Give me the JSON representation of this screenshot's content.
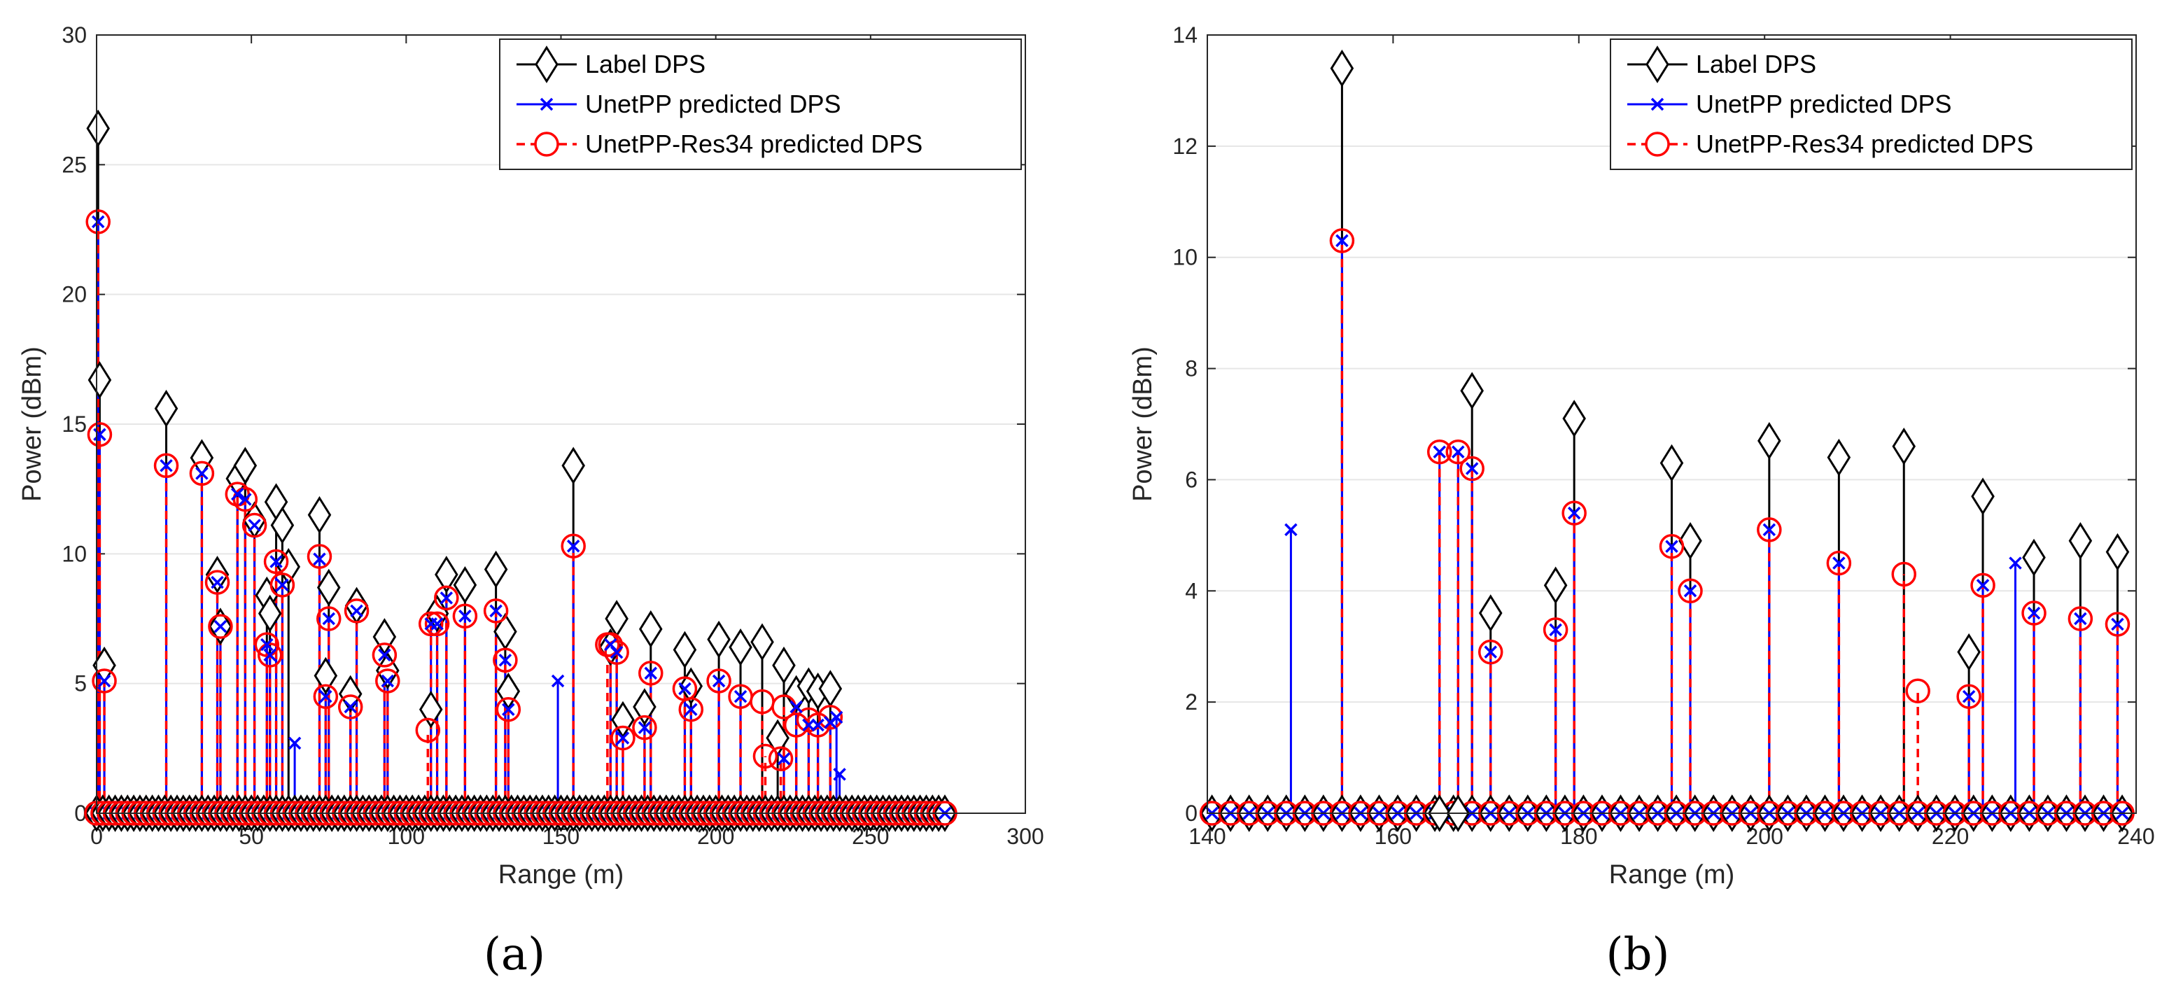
{
  "legend": {
    "label": "Label DPS",
    "unetpp": "UnetPP predicted DPS",
    "res34": "UnetPP-Res34 predicted DPS"
  },
  "colors": {
    "label": "#000000",
    "unetpp": "#0000ff",
    "res34": "#ff0000",
    "grid": "#e6e6e6",
    "axis": "#262626"
  },
  "chart_data": [
    {
      "type": "stem",
      "panel": "(a)",
      "xlabel": "Range (m)",
      "ylabel": "Power (dBm)",
      "xlim": [
        0,
        300
      ],
      "ylim": [
        0,
        30
      ],
      "xticks": [
        0,
        50,
        100,
        150,
        200,
        250,
        300
      ],
      "yticks": [
        0,
        5,
        10,
        15,
        20,
        25,
        30
      ],
      "grid": "horizontal",
      "legend_position": "top-right",
      "zero_range": [
        0,
        275
      ],
      "zero_step": 2,
      "series": [
        {
          "name": "Label DPS",
          "x": [
            0.5,
            1,
            2.5,
            22.5,
            34,
            39,
            40,
            45.5,
            48,
            51,
            55,
            56,
            58,
            60,
            62,
            72,
            74,
            75,
            82,
            84,
            93,
            94,
            108,
            110,
            113,
            119,
            129,
            132,
            133,
            154,
            166,
            168,
            170,
            177,
            179,
            190,
            192,
            201,
            208,
            215,
            220,
            222,
            226,
            230,
            233,
            237
          ],
          "y": [
            26.4,
            16.7,
            5.7,
            15.6,
            13.7,
            9.2,
            7.2,
            12.9,
            13.4,
            11.3,
            8.4,
            7.7,
            12.0,
            11.1,
            9.5,
            11.5,
            5.3,
            8.7,
            4.6,
            8.0,
            6.8,
            5.5,
            4.0,
            7.7,
            9.2,
            8.8,
            9.4,
            7.0,
            4.7,
            13.4,
            6.4,
            7.5,
            3.6,
            4.1,
            7.1,
            6.3,
            4.9,
            6.7,
            6.4,
            6.6,
            2.9,
            5.7,
            4.6,
            4.9,
            4.7,
            4.8
          ]
        },
        {
          "name": "UnetPP predicted DPS",
          "x": [
            0.5,
            1,
            2.5,
            22.5,
            34,
            39,
            40,
            45.5,
            48,
            51,
            55,
            56,
            58,
            60,
            64,
            72,
            74,
            75,
            82,
            84,
            93,
            94,
            108,
            110,
            113,
            119,
            129,
            132,
            133,
            149,
            154,
            166,
            168,
            170,
            177,
            179,
            190,
            192,
            201,
            208,
            222,
            226,
            230,
            233,
            237,
            239,
            240
          ],
          "y": [
            22.8,
            14.6,
            5.1,
            13.4,
            13.1,
            8.9,
            7.2,
            12.3,
            12.1,
            11.1,
            6.5,
            6.1,
            9.7,
            8.8,
            2.7,
            9.8,
            4.5,
            7.5,
            4.1,
            7.8,
            6.1,
            5.1,
            7.3,
            7.3,
            8.3,
            7.6,
            7.8,
            5.9,
            4.0,
            5.1,
            10.3,
            6.5,
            6.2,
            2.9,
            3.3,
            5.4,
            4.8,
            4.0,
            5.1,
            4.5,
            2.1,
            4.1,
            3.4,
            3.4,
            3.5,
            3.7,
            1.5
          ]
        },
        {
          "name": "UnetPP-Res34 predicted DPS",
          "x": [
            0.5,
            1,
            2.5,
            22.5,
            34,
            39,
            40,
            45.5,
            48,
            51,
            55,
            56,
            58,
            60,
            72,
            74,
            75,
            82,
            84,
            93,
            94,
            107,
            108,
            110,
            113,
            119,
            129,
            132,
            133,
            154,
            165,
            166,
            168,
            170,
            177,
            179,
            190,
            192,
            201,
            208,
            215,
            216,
            221,
            222,
            226,
            230,
            233,
            237
          ],
          "y": [
            22.8,
            14.6,
            5.1,
            13.4,
            13.1,
            8.9,
            7.2,
            12.3,
            12.1,
            11.1,
            6.5,
            6.1,
            9.7,
            8.8,
            9.9,
            4.5,
            7.5,
            4.1,
            7.8,
            6.1,
            5.1,
            3.2,
            7.3,
            7.3,
            8.3,
            7.6,
            7.8,
            5.9,
            4.0,
            10.3,
            6.5,
            6.5,
            6.2,
            2.9,
            3.3,
            5.4,
            4.8,
            4.0,
            5.1,
            4.5,
            4.3,
            2.2,
            2.1,
            4.1,
            3.4,
            3.6,
            3.4,
            3.7
          ]
        }
      ]
    },
    {
      "type": "stem",
      "panel": "(b)",
      "xlabel": "Range (m)",
      "ylabel": "Power (dBm)",
      "xlim": [
        140,
        240
      ],
      "ylim": [
        0,
        14
      ],
      "xticks": [
        140,
        160,
        180,
        200,
        220,
        240
      ],
      "yticks": [
        0,
        2,
        4,
        6,
        8,
        10,
        12,
        14
      ],
      "grid": "horizontal",
      "legend_position": "top-right",
      "zero_range": [
        140.5,
        239.5
      ],
      "zero_step": 2,
      "series": [
        {
          "name": "Label DPS",
          "x": [
            154.5,
            165,
            167,
            168.5,
            170.5,
            177.5,
            179.5,
            190,
            192,
            200.5,
            208,
            215,
            222,
            223.5,
            229,
            234,
            238
          ],
          "y": [
            13.4,
            0,
            0,
            7.6,
            3.6,
            4.1,
            7.1,
            6.3,
            4.9,
            6.7,
            6.4,
            6.6,
            2.9,
            5.7,
            4.6,
            4.9,
            4.7
          ]
        },
        {
          "name": "UnetPP predicted DPS",
          "x": [
            149,
            154.5,
            165,
            167,
            168.5,
            170.5,
            177.5,
            179.5,
            190,
            192,
            200.5,
            208,
            222,
            223.5,
            227,
            229,
            234,
            238
          ],
          "y": [
            5.1,
            10.3,
            6.5,
            6.5,
            6.2,
            2.9,
            3.3,
            5.4,
            4.8,
            4.0,
            5.1,
            4.5,
            2.1,
            4.1,
            4.5,
            3.6,
            3.5,
            3.4
          ]
        },
        {
          "name": "UnetPP-Res34 predicted DPS",
          "x": [
            154.5,
            165,
            167,
            168.5,
            170.5,
            177.5,
            179.5,
            190,
            192,
            200.5,
            208,
            215,
            216.5,
            222,
            223.5,
            229,
            234,
            238
          ],
          "y": [
            10.3,
            6.5,
            6.5,
            6.2,
            2.9,
            3.3,
            5.4,
            4.8,
            4.0,
            5.1,
            4.5,
            4.3,
            2.2,
            2.1,
            4.1,
            3.6,
            3.5,
            3.4
          ]
        }
      ]
    }
  ]
}
